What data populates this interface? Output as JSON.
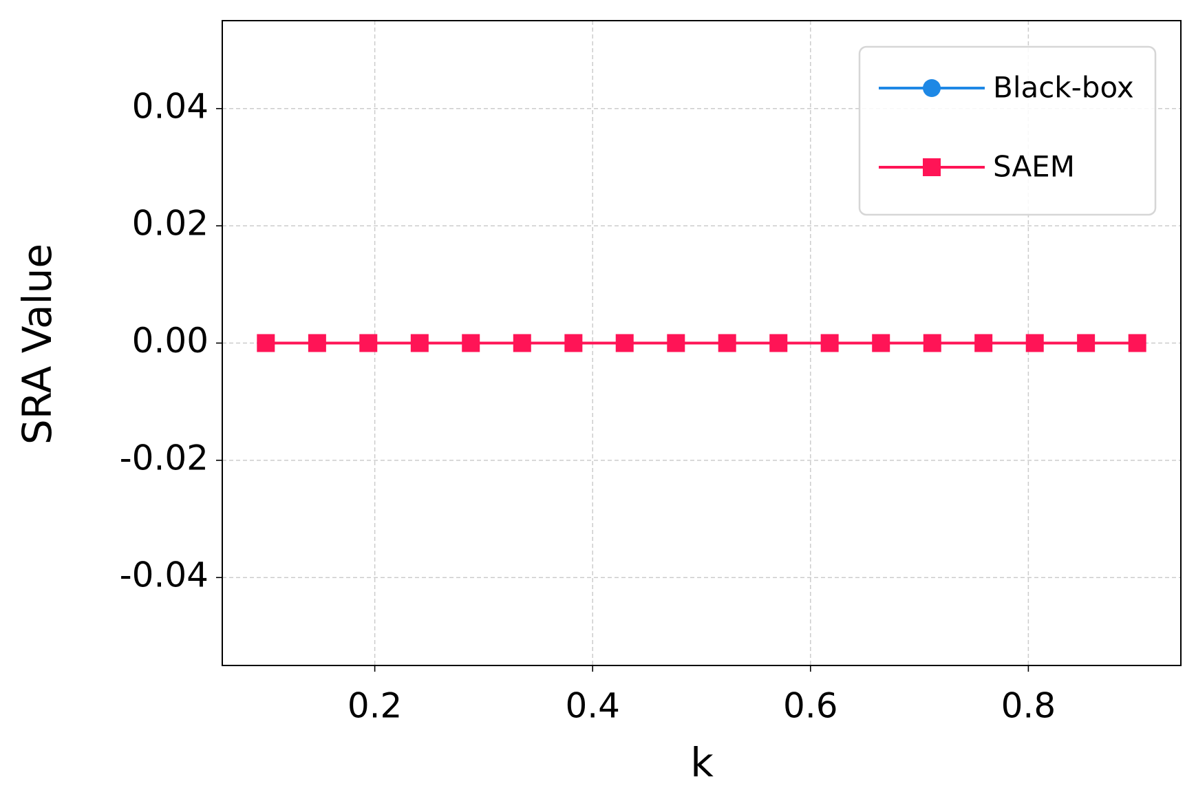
{
  "chart_data": {
    "type": "line",
    "xlabel": "k",
    "ylabel": "SRA Value",
    "x": [
      0.1,
      0.1471,
      0.1941,
      0.2412,
      0.2882,
      0.3353,
      0.3824,
      0.4294,
      0.4765,
      0.5235,
      0.5706,
      0.6176,
      0.6647,
      0.7118,
      0.7588,
      0.8059,
      0.8529,
      0.9
    ],
    "series": [
      {
        "name": "Black-box",
        "color": "#1e88e5",
        "marker": "circle",
        "values": [
          0,
          0,
          0,
          0,
          0,
          0,
          0,
          0,
          0,
          0,
          0,
          0,
          0,
          0,
          0,
          0,
          0,
          0
        ]
      },
      {
        "name": "SAEM",
        "color": "#ff1456",
        "marker": "square",
        "values": [
          0,
          0,
          0,
          0,
          0,
          0,
          0,
          0,
          0,
          0,
          0,
          0,
          0,
          0,
          0,
          0,
          0,
          0
        ]
      }
    ],
    "xlim": [
      0.06,
      0.94
    ],
    "xticks": [
      0.2,
      0.4,
      0.6,
      0.8
    ],
    "ylim": [
      -0.055,
      0.055
    ],
    "yticks": [
      {
        "value": -0.04,
        "label": "-0.04"
      },
      {
        "value": -0.02,
        "label": "-0.02"
      },
      {
        "value": 0,
        "label": "0.00"
      },
      {
        "value": 0.02,
        "label": "0.02"
      },
      {
        "value": 0.04,
        "label": "0.04"
      }
    ],
    "grid": true,
    "legend": "upper right"
  }
}
